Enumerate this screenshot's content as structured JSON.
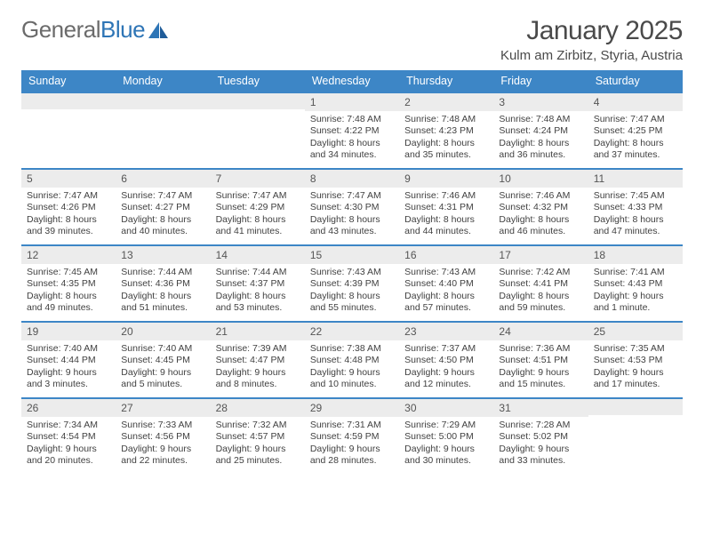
{
  "logo": {
    "text1": "General",
    "text2": "Blue"
  },
  "title": "January 2025",
  "location": "Kulm am Zirbitz, Styria, Austria",
  "colors": {
    "header_bg": "#3d86c6",
    "daynum_bg": "#ececec",
    "week_border": "#3d86c6",
    "text": "#333333",
    "logo_gray": "#6b6b6b",
    "logo_blue": "#2e75b6"
  },
  "dayNames": [
    "Sunday",
    "Monday",
    "Tuesday",
    "Wednesday",
    "Thursday",
    "Friday",
    "Saturday"
  ],
  "weeks": [
    [
      {
        "n": "",
        "sr": "",
        "ss": "",
        "dl": ""
      },
      {
        "n": "",
        "sr": "",
        "ss": "",
        "dl": ""
      },
      {
        "n": "",
        "sr": "",
        "ss": "",
        "dl": ""
      },
      {
        "n": "1",
        "sr": "Sunrise: 7:48 AM",
        "ss": "Sunset: 4:22 PM",
        "dl": "Daylight: 8 hours and 34 minutes."
      },
      {
        "n": "2",
        "sr": "Sunrise: 7:48 AM",
        "ss": "Sunset: 4:23 PM",
        "dl": "Daylight: 8 hours and 35 minutes."
      },
      {
        "n": "3",
        "sr": "Sunrise: 7:48 AM",
        "ss": "Sunset: 4:24 PM",
        "dl": "Daylight: 8 hours and 36 minutes."
      },
      {
        "n": "4",
        "sr": "Sunrise: 7:47 AM",
        "ss": "Sunset: 4:25 PM",
        "dl": "Daylight: 8 hours and 37 minutes."
      }
    ],
    [
      {
        "n": "5",
        "sr": "Sunrise: 7:47 AM",
        "ss": "Sunset: 4:26 PM",
        "dl": "Daylight: 8 hours and 39 minutes."
      },
      {
        "n": "6",
        "sr": "Sunrise: 7:47 AM",
        "ss": "Sunset: 4:27 PM",
        "dl": "Daylight: 8 hours and 40 minutes."
      },
      {
        "n": "7",
        "sr": "Sunrise: 7:47 AM",
        "ss": "Sunset: 4:29 PM",
        "dl": "Daylight: 8 hours and 41 minutes."
      },
      {
        "n": "8",
        "sr": "Sunrise: 7:47 AM",
        "ss": "Sunset: 4:30 PM",
        "dl": "Daylight: 8 hours and 43 minutes."
      },
      {
        "n": "9",
        "sr": "Sunrise: 7:46 AM",
        "ss": "Sunset: 4:31 PM",
        "dl": "Daylight: 8 hours and 44 minutes."
      },
      {
        "n": "10",
        "sr": "Sunrise: 7:46 AM",
        "ss": "Sunset: 4:32 PM",
        "dl": "Daylight: 8 hours and 46 minutes."
      },
      {
        "n": "11",
        "sr": "Sunrise: 7:45 AM",
        "ss": "Sunset: 4:33 PM",
        "dl": "Daylight: 8 hours and 47 minutes."
      }
    ],
    [
      {
        "n": "12",
        "sr": "Sunrise: 7:45 AM",
        "ss": "Sunset: 4:35 PM",
        "dl": "Daylight: 8 hours and 49 minutes."
      },
      {
        "n": "13",
        "sr": "Sunrise: 7:44 AM",
        "ss": "Sunset: 4:36 PM",
        "dl": "Daylight: 8 hours and 51 minutes."
      },
      {
        "n": "14",
        "sr": "Sunrise: 7:44 AM",
        "ss": "Sunset: 4:37 PM",
        "dl": "Daylight: 8 hours and 53 minutes."
      },
      {
        "n": "15",
        "sr": "Sunrise: 7:43 AM",
        "ss": "Sunset: 4:39 PM",
        "dl": "Daylight: 8 hours and 55 minutes."
      },
      {
        "n": "16",
        "sr": "Sunrise: 7:43 AM",
        "ss": "Sunset: 4:40 PM",
        "dl": "Daylight: 8 hours and 57 minutes."
      },
      {
        "n": "17",
        "sr": "Sunrise: 7:42 AM",
        "ss": "Sunset: 4:41 PM",
        "dl": "Daylight: 8 hours and 59 minutes."
      },
      {
        "n": "18",
        "sr": "Sunrise: 7:41 AM",
        "ss": "Sunset: 4:43 PM",
        "dl": "Daylight: 9 hours and 1 minute."
      }
    ],
    [
      {
        "n": "19",
        "sr": "Sunrise: 7:40 AM",
        "ss": "Sunset: 4:44 PM",
        "dl": "Daylight: 9 hours and 3 minutes."
      },
      {
        "n": "20",
        "sr": "Sunrise: 7:40 AM",
        "ss": "Sunset: 4:45 PM",
        "dl": "Daylight: 9 hours and 5 minutes."
      },
      {
        "n": "21",
        "sr": "Sunrise: 7:39 AM",
        "ss": "Sunset: 4:47 PM",
        "dl": "Daylight: 9 hours and 8 minutes."
      },
      {
        "n": "22",
        "sr": "Sunrise: 7:38 AM",
        "ss": "Sunset: 4:48 PM",
        "dl": "Daylight: 9 hours and 10 minutes."
      },
      {
        "n": "23",
        "sr": "Sunrise: 7:37 AM",
        "ss": "Sunset: 4:50 PM",
        "dl": "Daylight: 9 hours and 12 minutes."
      },
      {
        "n": "24",
        "sr": "Sunrise: 7:36 AM",
        "ss": "Sunset: 4:51 PM",
        "dl": "Daylight: 9 hours and 15 minutes."
      },
      {
        "n": "25",
        "sr": "Sunrise: 7:35 AM",
        "ss": "Sunset: 4:53 PM",
        "dl": "Daylight: 9 hours and 17 minutes."
      }
    ],
    [
      {
        "n": "26",
        "sr": "Sunrise: 7:34 AM",
        "ss": "Sunset: 4:54 PM",
        "dl": "Daylight: 9 hours and 20 minutes."
      },
      {
        "n": "27",
        "sr": "Sunrise: 7:33 AM",
        "ss": "Sunset: 4:56 PM",
        "dl": "Daylight: 9 hours and 22 minutes."
      },
      {
        "n": "28",
        "sr": "Sunrise: 7:32 AM",
        "ss": "Sunset: 4:57 PM",
        "dl": "Daylight: 9 hours and 25 minutes."
      },
      {
        "n": "29",
        "sr": "Sunrise: 7:31 AM",
        "ss": "Sunset: 4:59 PM",
        "dl": "Daylight: 9 hours and 28 minutes."
      },
      {
        "n": "30",
        "sr": "Sunrise: 7:29 AM",
        "ss": "Sunset: 5:00 PM",
        "dl": "Daylight: 9 hours and 30 minutes."
      },
      {
        "n": "31",
        "sr": "Sunrise: 7:28 AM",
        "ss": "Sunset: 5:02 PM",
        "dl": "Daylight: 9 hours and 33 minutes."
      },
      {
        "n": "",
        "sr": "",
        "ss": "",
        "dl": ""
      }
    ]
  ]
}
